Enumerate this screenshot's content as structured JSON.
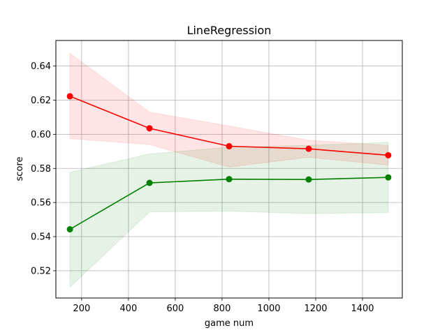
{
  "chart_data": {
    "type": "line",
    "title": "LineRegression",
    "xlabel": "game num",
    "ylabel": "score",
    "xlim": [
      90,
      1570
    ],
    "ylim": [
      0.504,
      0.655
    ],
    "xticks": [
      200,
      400,
      600,
      800,
      1000,
      1200,
      1400
    ],
    "yticks": [
      0.52,
      0.54,
      0.56,
      0.58,
      0.6,
      0.62,
      0.64
    ],
    "grid": true,
    "x": [
      150,
      490,
      830,
      1170,
      1510
    ],
    "series": [
      {
        "color": "#ff0000",
        "values": [
          0.6223,
          0.6035,
          0.593,
          0.5915,
          0.5877
        ],
        "band_upper": [
          0.6475,
          0.613,
          0.6048,
          0.5965,
          0.5935
        ],
        "band_lower": [
          0.5975,
          0.594,
          0.5808,
          0.5865,
          0.5819
        ],
        "band_color": "#ff0000",
        "band_opacity": 0.1
      },
      {
        "color": "#008000",
        "values": [
          0.5443,
          0.5715,
          0.5737,
          0.5735,
          0.5747
        ],
        "band_upper": [
          0.5777,
          0.5885,
          0.5925,
          0.5935,
          0.5953
        ],
        "band_lower": [
          0.5104,
          0.5545,
          0.5549,
          0.5535,
          0.5541
        ],
        "band_color": "#008000",
        "band_opacity": 0.1
      }
    ]
  }
}
